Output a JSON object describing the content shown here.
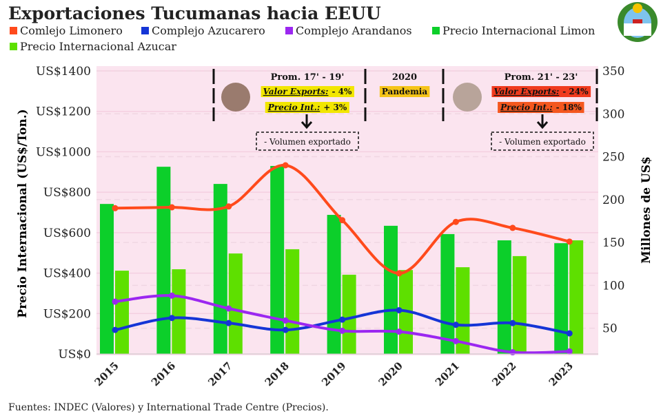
{
  "chart_data": {
    "type": "bar+line",
    "title": "Exportaciones Tucumanas hacia EEUU",
    "ylabel_left": "Precio Internacional (US$/Ton.)",
    "ylabel_right": "Millones de US$",
    "ylim_left": [
      0,
      1400
    ],
    "ylim_right": [
      20,
      350
    ],
    "left_ticks": [
      "US$0",
      "US$200",
      "US$400",
      "US$600",
      "US$800",
      "US$1000",
      "US$1200",
      "US$1400"
    ],
    "left_tick_values": [
      0,
      200,
      400,
      600,
      800,
      1000,
      1200,
      1400
    ],
    "right_ticks": [
      "50",
      "100",
      "150",
      "200",
      "250",
      "300",
      "350"
    ],
    "right_tick_values": [
      50,
      100,
      150,
      200,
      250,
      300,
      350
    ],
    "categories": [
      "2015",
      "2016",
      "2017",
      "2018",
      "2019",
      "2020",
      "2021",
      "2022",
      "2023"
    ],
    "grid": true,
    "legend_placement": "top",
    "series": [
      {
        "name": "Comlejo Limonero",
        "kind": "line",
        "axis": "right",
        "color": "#ff4a1c",
        "values": [
          190,
          191,
          192,
          240,
          176,
          114,
          174,
          167,
          151
        ]
      },
      {
        "name": "Complejo Azucarero",
        "kind": "line",
        "axis": "right",
        "color": "#1535d6",
        "values": [
          48,
          62,
          56,
          48,
          60,
          71,
          54,
          56,
          44
        ]
      },
      {
        "name": "Complejo Arandanos",
        "kind": "line",
        "axis": "right",
        "color": "#9b27f0",
        "values": [
          81,
          88,
          73,
          59,
          47,
          46,
          35,
          22,
          23
        ]
      },
      {
        "name": "Precio Internacional Limon",
        "kind": "bar",
        "axis": "left",
        "color": "#0ccf2a",
        "values": [
          742,
          926,
          841,
          930,
          688,
          634,
          593,
          562,
          548
        ]
      },
      {
        "name": "Precio Internacional Azucar",
        "kind": "bar",
        "axis": "left",
        "color": "#5ee000",
        "values": [
          412,
          419,
          497,
          518,
          392,
          415,
          429,
          484,
          562
        ]
      }
    ],
    "annotations": {
      "left": {
        "title": "Prom. 17' - 19'",
        "valor_label": "Valor Exports:",
        "valor_value": "- 4%",
        "precio_label": "Precio Int.:",
        "precio_value": "+ 3%",
        "note": "- Volumen exportado",
        "highlight": "#f2e600"
      },
      "middle": {
        "year": "2020",
        "label": "Pandemia",
        "highlight": "#f5c419"
      },
      "right": {
        "title": "Prom. 21' - 23'",
        "valor_label": "Valor Exports:",
        "valor_value": "- 24%",
        "precio_label": "Precio Int.:",
        "precio_value": "- 18%",
        "note": "- Volumen exportado",
        "highlight": "#f03a1e",
        "highlight2": "#f4571f"
      }
    }
  },
  "source": "Fuentes: INDEC (Valores) y International Trade Centre (Precios)."
}
